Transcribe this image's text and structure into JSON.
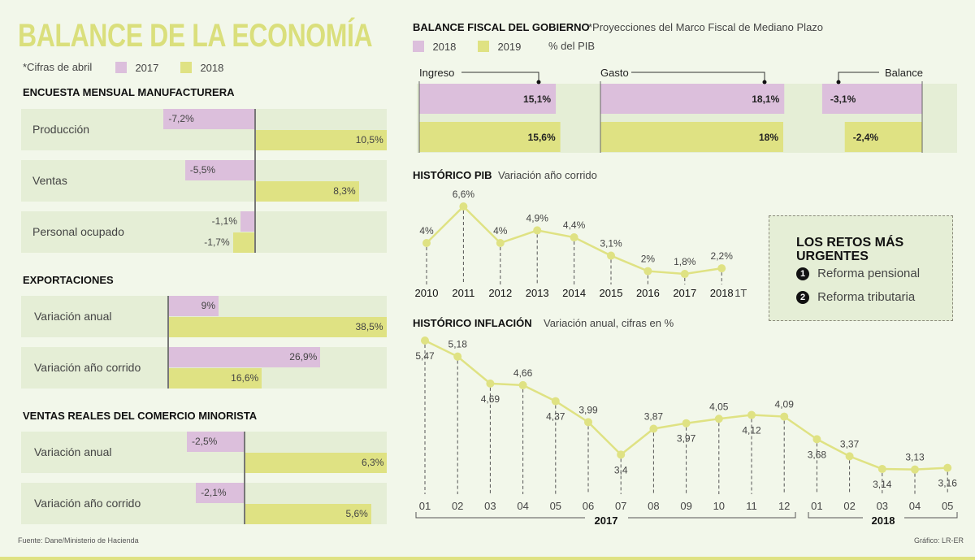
{
  "header": {
    "title": "BALANCE DE LA ECONOMÍA",
    "note": "*Cifras de abril",
    "legend": [
      {
        "label": "2017",
        "color": "#dcbfdc"
      },
      {
        "label": "2018",
        "color": "#dfe283"
      }
    ]
  },
  "fiscal_header": {
    "title": "BALANCE FISCAL DEL GOBIERNO",
    "subtitle": "*Proyecciones del Marco Fiscal de Mediano Plazo",
    "legend": [
      {
        "label": "2018",
        "color": "#dcbfdc"
      },
      {
        "label": "2019",
        "color": "#dfe283"
      }
    ],
    "unit": "% del PIB"
  },
  "retos": {
    "title_line1": "LOS RETOS MÁS",
    "title_line2": "URGENTES",
    "items": [
      {
        "number": "1",
        "label": "Reforma pensional"
      },
      {
        "number": "2",
        "label": "Reforma tributaria"
      }
    ]
  },
  "footer": {
    "source": "Fuente: Dane/Ministerio de Hacienda",
    "credit": "Gráfico: LR-ER"
  },
  "colors": {
    "purple": "#dcbfdc",
    "green": "#dfe283",
    "title": "#dadf7c",
    "background": "#f2f7ea"
  },
  "chart_data": [
    {
      "type": "bar",
      "orientation": "horizontal",
      "title": "ENCUESTA MENSUAL MANUFACTURERA",
      "categories": [
        "Producción",
        "Ventas",
        "Personal ocupado"
      ],
      "series": [
        {
          "name": "2017",
          "values": [
            -7.2,
            -5.5,
            -1.1
          ],
          "labels": [
            "-7,2%",
            "-5,5%",
            "-1,1%"
          ]
        },
        {
          "name": "2018",
          "values": [
            10.5,
            8.3,
            -1.7
          ],
          "labels": [
            "10,5%",
            "8,3%",
            "-1,7%"
          ]
        }
      ]
    },
    {
      "type": "bar",
      "orientation": "horizontal",
      "title": "EXPORTACIONES",
      "categories": [
        "Variación anual",
        "Variación año corrido"
      ],
      "series": [
        {
          "name": "2017",
          "values": [
            9,
            26.9
          ],
          "labels": [
            "9%",
            "26,9%"
          ]
        },
        {
          "name": "2018",
          "values": [
            38.5,
            16.6
          ],
          "labels": [
            "38,5%",
            "16,6%"
          ]
        }
      ]
    },
    {
      "type": "bar",
      "orientation": "horizontal",
      "title": "VENTAS REALES DEL COMERCIO MINORISTA",
      "categories": [
        "Variación anual",
        "Variación año corrido"
      ],
      "series": [
        {
          "name": "2017",
          "values": [
            -2.5,
            -2.1
          ],
          "labels": [
            "-2,5%",
            "-2,1%"
          ]
        },
        {
          "name": "2018",
          "values": [
            6.3,
            5.6
          ],
          "labels": [
            "6,3%",
            "5,6%"
          ]
        }
      ]
    },
    {
      "type": "bar",
      "orientation": "horizontal",
      "title": "BALANCE FISCAL DEL GOBIERNO",
      "categories": [
        "Ingreso",
        "Gasto",
        "Balance"
      ],
      "series": [
        {
          "name": "2018",
          "values": [
            15.1,
            18.1,
            -3.1
          ],
          "labels": [
            "15,1%",
            "18,1%",
            "-3,1%"
          ]
        },
        {
          "name": "2019",
          "values": [
            15.6,
            18,
            -2.4
          ],
          "labels": [
            "15,6%",
            "18%",
            "-2,4%"
          ]
        }
      ]
    },
    {
      "type": "line",
      "title": "HISTÓRICO PIB",
      "subtitle": "Variación año corrido",
      "categories": [
        "2010",
        "2011",
        "2012",
        "2013",
        "2014",
        "2015",
        "2016",
        "2017",
        "2018"
      ],
      "last_category_suffix": "1T",
      "values": [
        4,
        6.6,
        4,
        4.9,
        4.4,
        3.1,
        2,
        1.8,
        2.2
      ],
      "labels": [
        "4%",
        "6,6%",
        "4%",
        "4,9%",
        "4,4%",
        "3,1%",
        "2%",
        "1,8%",
        "2,2%"
      ],
      "grid": false
    },
    {
      "type": "line",
      "title": "HISTÓRICO INFLACIÓN",
      "subtitle": "Variación anual, cifras en %",
      "categories": [
        "01",
        "02",
        "03",
        "04",
        "05",
        "06",
        "07",
        "08",
        "09",
        "10",
        "11",
        "12",
        "01",
        "02",
        "03",
        "04",
        "05"
      ],
      "year_groups": [
        {
          "label": "2017",
          "count": 12
        },
        {
          "label": "2018",
          "count": 5
        }
      ],
      "values": [
        5.47,
        5.18,
        4.69,
        4.66,
        4.37,
        3.99,
        3.4,
        3.87,
        3.97,
        4.05,
        4.12,
        4.09,
        3.68,
        3.37,
        3.14,
        3.13,
        3.16
      ],
      "labels": [
        "5,47",
        "5,18",
        "4,69",
        "4,66",
        "4,37",
        "3,99",
        "3,4",
        "3,87",
        "3,97",
        "4,05",
        "4,12",
        "4,09",
        "3,68",
        "3,37",
        "3,14",
        "3,13",
        "3,16"
      ],
      "grid": false
    }
  ]
}
